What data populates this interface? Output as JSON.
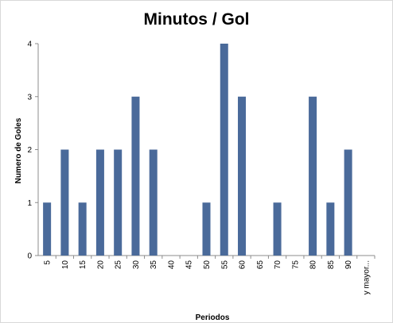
{
  "chart_data": {
    "type": "bar",
    "title": "Minutos / Gol",
    "xlabel": "Periodos",
    "ylabel": "Numero de Goles",
    "categories": [
      "5",
      "10",
      "15",
      "20",
      "25",
      "30",
      "35",
      "40",
      "45",
      "50",
      "55",
      "60",
      "65",
      "70",
      "75",
      "80",
      "85",
      "90",
      "y mayor..."
    ],
    "values": [
      1,
      2,
      1,
      2,
      2,
      3,
      2,
      0,
      0,
      1,
      4,
      3,
      0,
      1,
      0,
      3,
      1,
      2,
      0
    ],
    "ylim": [
      0,
      4
    ],
    "yticks": [
      "0",
      "1",
      "2",
      "3",
      "4"
    ],
    "grid": false,
    "legend": "none",
    "bar_color": "#4a6a9a"
  }
}
